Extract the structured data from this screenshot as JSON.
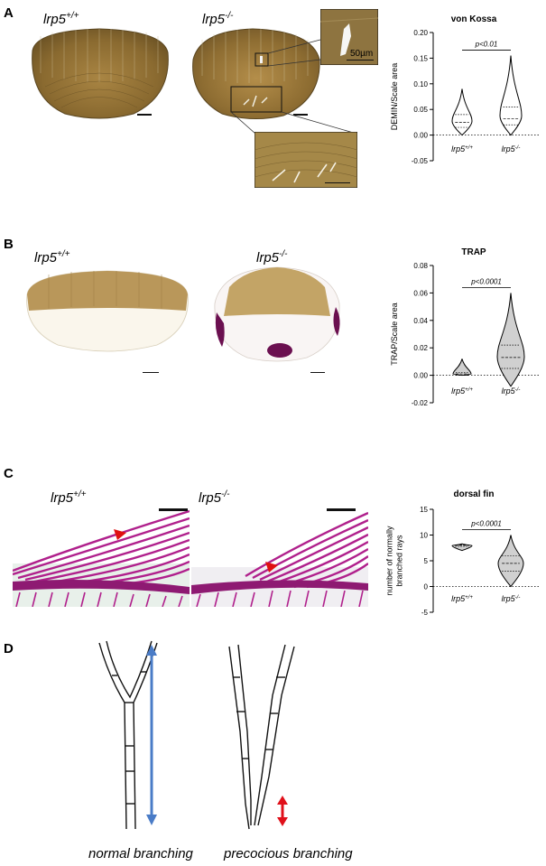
{
  "panel_letters": [
    "A",
    "B",
    "C",
    "D"
  ],
  "genotypes": {
    "base": "lrp5",
    "wt_sup": "+/+",
    "ko_sup": "-/-"
  },
  "inset_scale_label": "50µm",
  "captions": {
    "normal": "normal branching",
    "precocious": "precocious branching"
  },
  "colors": {
    "violin_fill_A": "#ffffff",
    "violin_fill": "#d0d0d0",
    "trap_stain": "#6b1050",
    "alizarin": "#b0208c",
    "arrow_blue": "#4a7cc7",
    "arrow_red": "#e0101a",
    "arrowhead_red": "#e01010"
  },
  "chart_data": [
    {
      "type": "violin",
      "title": "von Kossa",
      "ylabel": "DEMIN/Scale area",
      "categories": [
        "lrp5+/+",
        "lrp5-/-"
      ],
      "ylim": [
        -0.05,
        0.2
      ],
      "yticks": [
        -0.05,
        0.0,
        0.05,
        0.1,
        0.15,
        0.2
      ],
      "ytick_labels": [
        "-0.05",
        "0.00",
        "0.05",
        "0.10",
        "0.15",
        "0.20"
      ],
      "reference_line": 0,
      "series": [
        {
          "min": 0.0,
          "max": 0.09,
          "q1": 0.015,
          "median": 0.025,
          "q3": 0.04
        },
        {
          "min": 0.0,
          "max": 0.155,
          "q1": 0.02,
          "median": 0.032,
          "q3": 0.055
        }
      ],
      "annotation": "p<0.01"
    },
    {
      "type": "violin",
      "title": "TRAP",
      "ylabel": "TRAP/Scale area",
      "categories": [
        "lrp5+/+",
        "lrp5-/-"
      ],
      "ylim": [
        -0.02,
        0.08
      ],
      "yticks": [
        -0.02,
        0.0,
        0.02,
        0.04,
        0.06,
        0.08
      ],
      "ytick_labels": [
        "-0.02",
        "0.00",
        "0.02",
        "0.04",
        "0.06",
        "0.08"
      ],
      "reference_line": 0,
      "series": [
        {
          "min": 0.0,
          "max": 0.012,
          "q1": 0.0,
          "median": 0.001,
          "q3": 0.002
        },
        {
          "min": -0.008,
          "max": 0.06,
          "q1": 0.005,
          "median": 0.013,
          "q3": 0.022
        }
      ],
      "annotation": "p<0.0001"
    },
    {
      "type": "violin",
      "title": "dorsal fin",
      "ylabel": "number of normally\nbranched rays",
      "categories": [
        "lrp5+/+",
        "lrp5-/-"
      ],
      "ylim": [
        -5,
        15
      ],
      "yticks": [
        -5,
        0,
        5,
        10,
        15
      ],
      "ytick_labels": [
        "-5",
        "0",
        "5",
        "10",
        "15"
      ],
      "reference_line": 0,
      "series": [
        {
          "min": 7.0,
          "max": 8.3,
          "q1": 7.8,
          "median": 8.0,
          "q3": 8.1
        },
        {
          "min": 0.0,
          "max": 10.0,
          "q1": 3.0,
          "median": 4.5,
          "q3": 6.0
        }
      ],
      "annotation": "p<0.0001"
    }
  ]
}
